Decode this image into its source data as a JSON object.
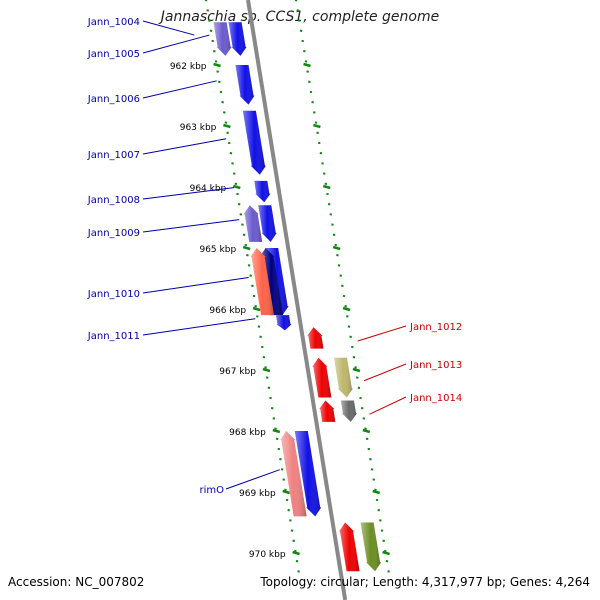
{
  "title": "Jannaschia sp. CCS1, complete genome",
  "footer": {
    "accession": "Accession: NC_007802",
    "summary": "Topology: circular; Length: 4,317,977 bp; Genes: 4,264"
  },
  "colors": {
    "blue": "#1010e6",
    "blue_light": "#6a5acd",
    "red": "#ee0000",
    "salmon": "#ff6347",
    "pink": "#f08080",
    "olive": "#bdb76b",
    "dark_olive": "#6b8e23",
    "gray": "#696969",
    "navy": "#000080",
    "label_left": "#0000aa",
    "label_right": "#cc0000",
    "tick": "#118811",
    "backbone": "#888888"
  },
  "scale": {
    "unit": "kbp",
    "ticks": [
      {
        "kbp": 962,
        "label": "962 kbp"
      },
      {
        "kbp": 963,
        "label": "963 kbp"
      },
      {
        "kbp": 964,
        "label": "964 kbp"
      },
      {
        "kbp": 965,
        "label": "965 kbp"
      },
      {
        "kbp": 966,
        "label": "966 kbp"
      },
      {
        "kbp": 967,
        "label": "967 kbp"
      },
      {
        "kbp": 968,
        "label": "968 kbp"
      },
      {
        "kbp": 969,
        "label": "969 kbp"
      },
      {
        "kbp": 970,
        "label": "970 kbp"
      }
    ]
  },
  "genes_left": [
    {
      "name": "Jann_1004",
      "label": "Jann_1004",
      "start_kbp": 961.3,
      "end_kbp": 961.85,
      "strand": "+",
      "color": "blue_light",
      "lane": 0
    },
    {
      "name": "Jann_1005",
      "label": "Jann_1005",
      "start_kbp": 961.3,
      "end_kbp": 961.85,
      "strand": "+",
      "color": "blue",
      "lane": 1
    },
    {
      "name": "Jann_1006",
      "label": "Jann_1006",
      "start_kbp": 962.0,
      "end_kbp": 962.65,
      "strand": "+",
      "color": "blue",
      "lane": 1
    },
    {
      "name": "Jann_1007",
      "label": "Jann_1007",
      "start_kbp": 962.75,
      "end_kbp": 963.8,
      "strand": "+",
      "color": "blue",
      "lane": 1
    },
    {
      "name": "Jann_1008",
      "label": "Jann_1008",
      "start_kbp": 963.9,
      "end_kbp": 964.25,
      "strand": "+",
      "color": "blue",
      "lane": 1
    },
    {
      "name": "Jann_1009",
      "label": "Jann_1009",
      "start_kbp": 964.3,
      "end_kbp": 964.9,
      "strand": "+",
      "color": "blue",
      "lane": 1
    },
    {
      "name": "Jann_1009b",
      "label": "",
      "start_kbp": 964.3,
      "end_kbp": 964.9,
      "strand": "-",
      "color": "blue_light",
      "lane": 0
    },
    {
      "name": "Jann_1010",
      "label": "Jann_1010",
      "start_kbp": 965.0,
      "end_kbp": 966.1,
      "strand": "+",
      "color": "blue",
      "lane": 1
    },
    {
      "name": "Jann_1010b",
      "label": "",
      "start_kbp": 965.0,
      "end_kbp": 966.1,
      "strand": "-",
      "color": "navy",
      "lane": 0.6
    },
    {
      "name": "Jann_1010c",
      "label": "",
      "start_kbp": 965.0,
      "end_kbp": 966.1,
      "strand": "-",
      "color": "salmon",
      "lane": 0
    },
    {
      "name": "Jann_1011",
      "label": "Jann_1011",
      "start_kbp": 966.1,
      "end_kbp": 966.35,
      "strand": "+",
      "color": "blue",
      "lane": 1
    },
    {
      "name": "rimO",
      "label": "rimO",
      "start_kbp": 968.0,
      "end_kbp": 969.4,
      "strand": "+",
      "color": "blue",
      "lane": 1
    },
    {
      "name": "rimOb",
      "label": "",
      "start_kbp": 968.0,
      "end_kbp": 969.4,
      "strand": "-",
      "color": "pink",
      "lane": 0
    }
  ],
  "genes_right": [
    {
      "name": "Jann_1012",
      "label": "Jann_1012",
      "start_kbp": 966.3,
      "end_kbp": 966.65,
      "strand": "-",
      "color": "red",
      "lane": 0
    },
    {
      "name": "Jann_1013",
      "label": "Jann_1013",
      "start_kbp": 966.8,
      "end_kbp": 967.45,
      "strand": "-",
      "color": "red",
      "lane": 0
    },
    {
      "name": "Jann_1013b",
      "label": "",
      "start_kbp": 966.8,
      "end_kbp": 967.45,
      "strand": "+",
      "color": "olive",
      "lane": 1
    },
    {
      "name": "Jann_1014",
      "label": "Jann_1014",
      "start_kbp": 967.5,
      "end_kbp": 967.85,
      "strand": "-",
      "color": "red",
      "lane": 0
    },
    {
      "name": "Jann_1014b",
      "label": "",
      "start_kbp": 967.5,
      "end_kbp": 967.85,
      "strand": "+",
      "color": "gray",
      "lane": 1
    },
    {
      "name": "Jann_1015",
      "label": "",
      "start_kbp": 969.5,
      "end_kbp": 970.3,
      "strand": "-",
      "color": "red",
      "lane": 0
    },
    {
      "name": "Jann_1015b",
      "label": "",
      "start_kbp": 969.5,
      "end_kbp": 970.3,
      "strand": "+",
      "color": "dark_olive",
      "lane": 1
    }
  ]
}
